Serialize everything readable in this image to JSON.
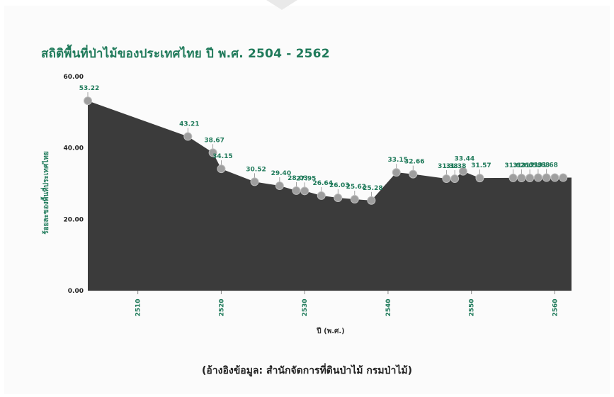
{
  "title": "สถิติพื้นที่ป่าไม้ของประเทศไทย ปี พ.ศ. 2504 - 2562",
  "source": "(อ้างอิงข้อมูล: สำนักจัดการที่ดินป่าไม้ กรมป่าไม้)",
  "colors": {
    "title": "#1f7a5a",
    "area": "#3b3b3b",
    "label": "#1f7a5a",
    "marker": "#9e9e9e"
  },
  "chart_data": {
    "type": "area",
    "title": "สถิติพื้นที่ป่าไม้ของประเทศไทย ปี พ.ศ. 2504 - 2562",
    "xlabel": "ปี (พ.ศ.)",
    "ylabel": "ร้อยละของพื้นที่ประเทศไทย",
    "xlim": [
      2504,
      2562
    ],
    "ylim": [
      0,
      60
    ],
    "yticks": [
      "0.00",
      "20.00",
      "40.00",
      "60.00"
    ],
    "xticks": [
      "2510",
      "2520",
      "2530",
      "2540",
      "2550",
      "2560"
    ],
    "grid": false,
    "legend": "none",
    "x": [
      2504,
      2516,
      2519,
      2520,
      2524,
      2527,
      2529,
      2530,
      2532,
      2534,
      2536,
      2538,
      2541,
      2543,
      2547,
      2548,
      2549,
      2551,
      2555,
      2556,
      2557,
      2558,
      2559,
      2560,
      2561
    ],
    "values": [
      53.22,
      43.21,
      38.67,
      34.15,
      30.52,
      29.4,
      28.03,
      27.95,
      26.64,
      26.03,
      25.62,
      25.28,
      33.15,
      32.66,
      31.38,
      31.38,
      33.44,
      31.57,
      31.62,
      31.6,
      31.58,
      31.68,
      31.68,
      31.68,
      31.68
    ],
    "data_labels": [
      "53.22",
      "43.21",
      "38.67",
      "34.15",
      "30.52",
      "29.40",
      "28.03",
      "27.95",
      "26.64",
      "26.03",
      "25.62",
      "25.28",
      "33.15",
      "32.66",
      "31.38",
      "31.38",
      "33.44",
      "31.57",
      "31.62",
      "31.60",
      "31.58",
      "31.68",
      "31.68",
      "",
      ""
    ]
  }
}
